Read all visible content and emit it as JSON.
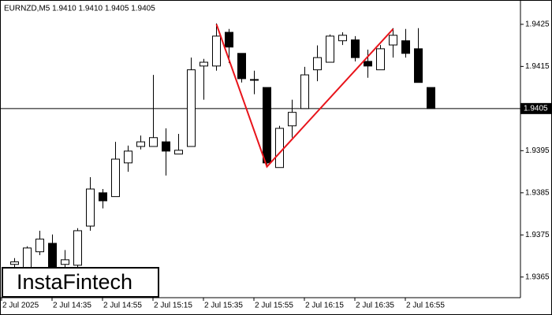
{
  "chart_data": {
    "type": "candlestick",
    "title": "EURNZD,M5  1.9410 1.9410 1.9405 1.9405",
    "logo": "InstaFintech",
    "categories": [
      "2 Jul 2025",
      null,
      null,
      null,
      "2 Jul 14:35",
      null,
      null,
      null,
      "2 Jul 14:55",
      null,
      null,
      null,
      "2 Jul 15:15",
      null,
      null,
      null,
      "2 Jul 15:35",
      null,
      null,
      null,
      "2 Jul 15:55",
      null,
      null,
      null,
      "2 Jul 16:15",
      null,
      null,
      null,
      "2 Jul 16:35",
      null,
      null,
      null,
      "2 Jul 16:55",
      null,
      null
    ],
    "open": [
      null,
      1.9368,
      1.93672,
      1.9371,
      1.9373,
      1.9368,
      1.93678,
      1.93771,
      1.9385,
      1.93841,
      1.93921,
      1.9396,
      1.9396,
      1.93971,
      1.93942,
      1.9396,
      1.94151,
      1.94151,
      1.94231,
      1.94181,
      1.94119,
      1.941,
      1.9391,
      1.94009,
      1.9405,
      1.94142,
      1.9416,
      1.94211,
      1.94213,
      1.94162,
      1.94142,
      1.94201,
      1.94211,
      1.94192,
      1.941
    ],
    "high": [
      null,
      1.93695,
      1.93723,
      1.9376,
      1.93751,
      1.93714,
      1.93766,
      1.93887,
      1.93859,
      1.93971,
      1.93962,
      1.93986,
      1.9413,
      1.94003,
      1.9399,
      1.94171,
      1.94168,
      1.94252,
      1.94239,
      1.94181,
      1.9414,
      1.941,
      1.94009,
      1.94071,
      1.94149,
      1.942,
      1.94226,
      1.94231,
      1.94222,
      1.9419,
      1.94201,
      1.94241,
      1.94239,
      1.94241,
      1.941
    ],
    "low": [
      null,
      1.93672,
      1.93663,
      1.93702,
      1.93663,
      1.93672,
      1.93663,
      1.9376,
      1.93813,
      1.93841,
      1.939,
      1.93953,
      1.9396,
      1.93891,
      1.93942,
      1.9396,
      1.94071,
      1.9414,
      1.94158,
      1.94112,
      1.94084,
      1.93915,
      1.9391,
      1.93981,
      1.9405,
      1.94115,
      1.9416,
      1.94201,
      1.94162,
      1.94123,
      1.94142,
      1.94171,
      1.94171,
      1.94112,
      1.9405
    ],
    "close": [
      null,
      1.93686,
      1.93719,
      1.9374,
      1.93672,
      1.93691,
      1.9376,
      1.93859,
      1.93831,
      1.9393,
      1.93949,
      1.93971,
      1.93981,
      1.93949,
      1.93951,
      1.94142,
      1.9416,
      1.94222,
      1.94196,
      1.94121,
      1.94119,
      1.93921,
      1.94003,
      1.94041,
      1.9413,
      1.94171,
      1.94222,
      1.94224,
      1.94171,
      1.94151,
      1.94192,
      1.94224,
      1.94181,
      1.94112,
      1.9405
    ],
    "up_color": "#ffffff",
    "down_color": "#000000",
    "current_price": 1.9405,
    "pattern_line": {
      "color": "#e8141b",
      "x_index": [
        17,
        21,
        31
      ],
      "values": [
        1.9425,
        1.93912,
        1.94239
      ]
    },
    "ylim": [
      1.93601,
      1.94304
    ],
    "yticks": [
      1.9365,
      1.9375,
      1.9385,
      1.9395,
      1.9405,
      1.9415,
      1.9425
    ]
  }
}
